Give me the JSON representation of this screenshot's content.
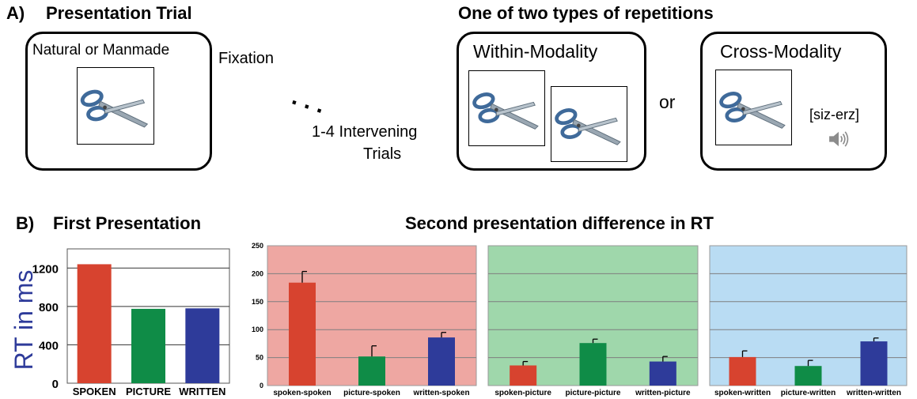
{
  "panel_a": {
    "label": "A)",
    "title": "Presentation Trial",
    "trial_box_text": "Natural or Manmade",
    "fixation": "Fixation",
    "ellipsis": ". . .",
    "intervening_line1": "1-4 Intervening",
    "intervening_line2": "Trials",
    "repetitions_title": "One of two types of repetitions",
    "within_label": "Within-Modality",
    "or_label": "or",
    "cross_label": "Cross-Modality",
    "spoken_word": "[siz-erz]",
    "icons": [
      "scissors-icon",
      "speaker-icon"
    ]
  },
  "panel_b": {
    "label": "B)",
    "first_title": "First Presentation",
    "second_title": "Second presentation difference in RT"
  },
  "colors": {
    "red": "#d7432f",
    "green": "#0f8c47",
    "blue": "#2e3b9a",
    "bg_red": "#eea7a2",
    "bg_green": "#9fd7ab",
    "bg_blue": "#b9dcf3",
    "ylabel": "#2e3b9a"
  },
  "chart_data": [
    {
      "type": "bar",
      "title": "First Presentation",
      "ylabel": "RT in ms",
      "categories": [
        "SPOKEN",
        "PICTURE",
        "WRITTEN"
      ],
      "values": [
        1240,
        775,
        780
      ],
      "yticks": [
        0,
        400,
        800,
        1200
      ],
      "ylim": [
        0,
        1400
      ],
      "grid": true
    },
    {
      "type": "bar",
      "title": "Second presentation difference in RT",
      "categories": [
        "spoken-spoken",
        "picture-spoken",
        "written-spoken"
      ],
      "values": [
        184,
        52,
        86
      ],
      "errors": [
        20,
        19,
        9
      ],
      "yticks": [
        0,
        50,
        100,
        150,
        200,
        250
      ],
      "ylim": [
        0,
        250
      ],
      "grid": true
    },
    {
      "type": "bar",
      "categories": [
        "spoken-picture",
        "picture-picture",
        "written-picture"
      ],
      "values": [
        36,
        76,
        43
      ],
      "errors": [
        7,
        7,
        9
      ],
      "ylim": [
        0,
        250
      ],
      "grid": true
    },
    {
      "type": "bar",
      "categories": [
        "spoken-written",
        "picture-written",
        "written-written"
      ],
      "values": [
        51,
        35,
        79
      ],
      "errors": [
        11,
        10,
        6
      ],
      "ylim": [
        0,
        250
      ],
      "grid": true
    }
  ]
}
